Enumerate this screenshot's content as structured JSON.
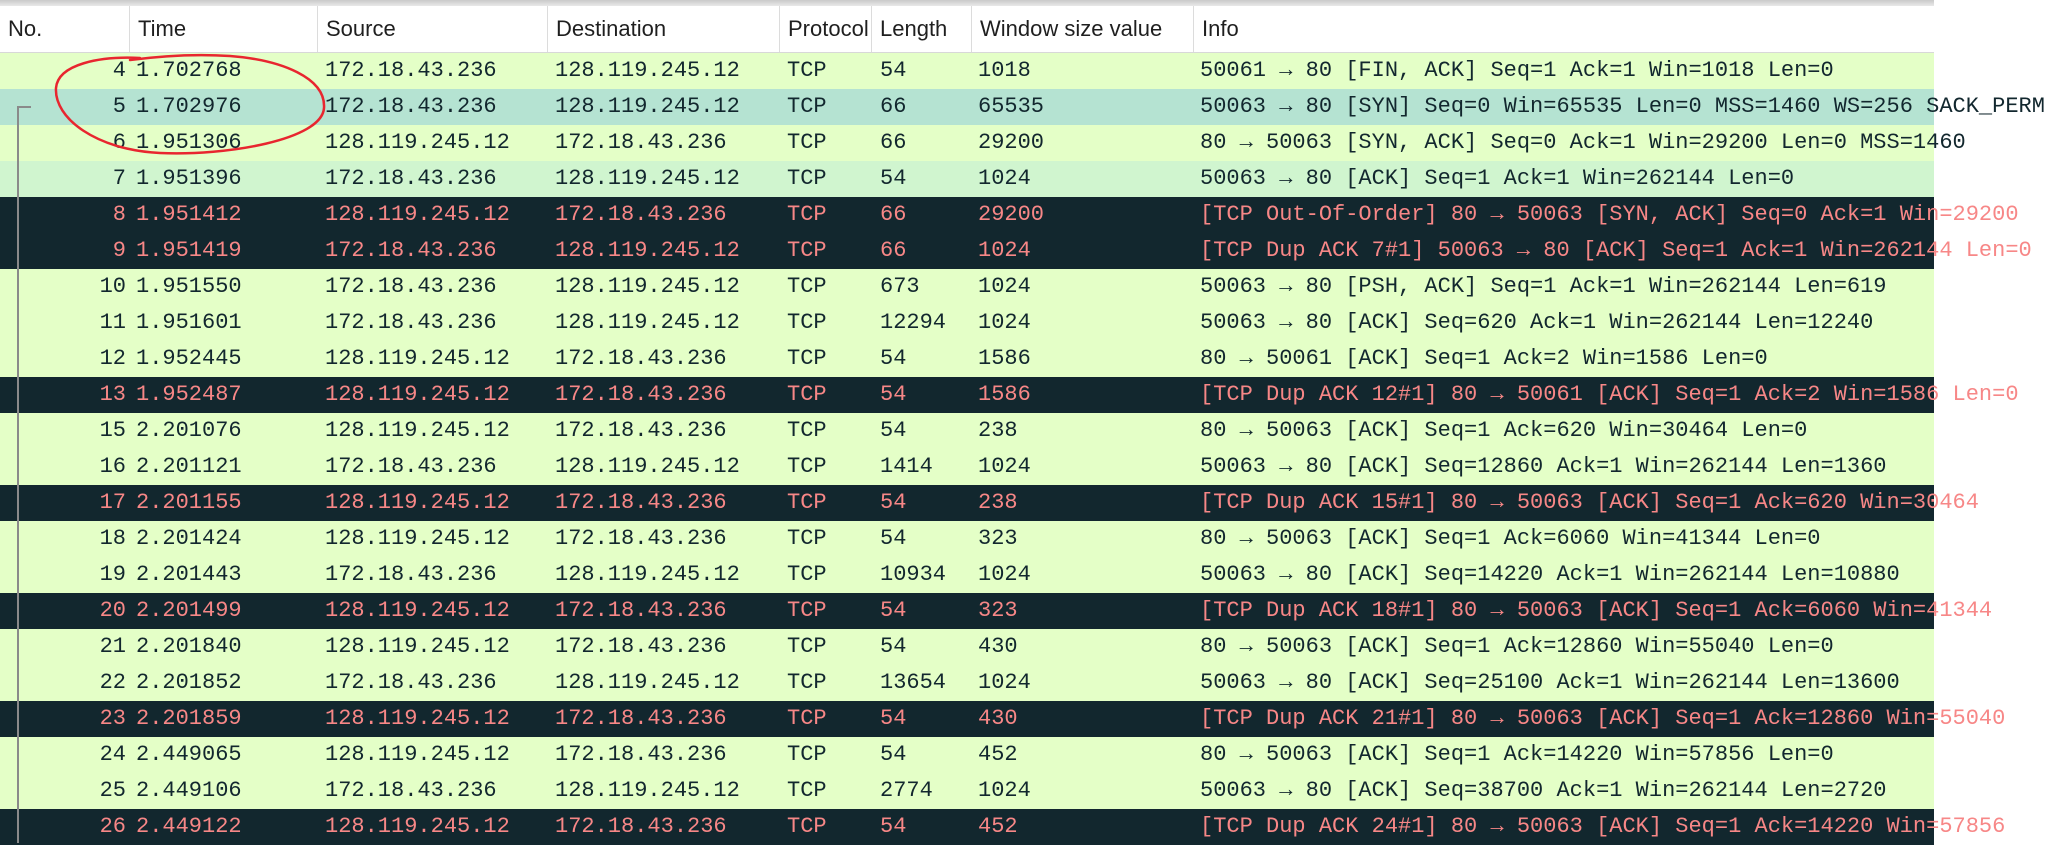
{
  "columns": {
    "no": "No.",
    "time": "Time",
    "source": "Source",
    "destination": "Destination",
    "protocol": "Protocol",
    "length": "Length",
    "window": "Window size value",
    "info": "Info"
  },
  "colors": {
    "normal_row_bg": "#e4ffc7",
    "selected_row_bg": "#b5e3d2",
    "related_row_bg": "#d0f5cf",
    "bad_row_bg": "#12272e",
    "bad_row_text": "#f78787",
    "annotation_circle": "#e8262f"
  },
  "packets": [
    {
      "no": "4",
      "time": "1.702768",
      "source": "172.18.43.236",
      "destination": "128.119.245.12",
      "protocol": "TCP",
      "length": "54",
      "window": "1018",
      "info": "50061 → 80 [FIN, ACK] Seq=1 Ack=1 Win=1018 Len=0",
      "style": "normal"
    },
    {
      "no": "5",
      "time": "1.702976",
      "source": "172.18.43.236",
      "destination": "128.119.245.12",
      "protocol": "TCP",
      "length": "66",
      "window": "65535",
      "info": "50063 → 80 [SYN] Seq=0 Win=65535 Len=0 MSS=1460 WS=256 SACK_PERM",
      "style": "selected"
    },
    {
      "no": "6",
      "time": "1.951306",
      "source": "128.119.245.12",
      "destination": "172.18.43.236",
      "protocol": "TCP",
      "length": "66",
      "window": "29200",
      "info": "80 → 50063 [SYN, ACK] Seq=0 Ack=1 Win=29200 Len=0 MSS=1460",
      "style": "normal"
    },
    {
      "no": "7",
      "time": "1.951396",
      "source": "172.18.43.236",
      "destination": "128.119.245.12",
      "protocol": "TCP",
      "length": "54",
      "window": "1024",
      "info": "50063 → 80 [ACK] Seq=1 Ack=1 Win=262144 Len=0",
      "style": "lightsel"
    },
    {
      "no": "8",
      "time": "1.951412",
      "source": "128.119.245.12",
      "destination": "172.18.43.236",
      "protocol": "TCP",
      "length": "66",
      "window": "29200",
      "info": "[TCP Out-Of-Order] 80 → 50063 [SYN, ACK] Seq=0 Ack=1 Win=29200",
      "style": "bad"
    },
    {
      "no": "9",
      "time": "1.951419",
      "source": "172.18.43.236",
      "destination": "128.119.245.12",
      "protocol": "TCP",
      "length": "66",
      "window": "1024",
      "info": "[TCP Dup ACK 7#1] 50063 → 80 [ACK] Seq=1 Ack=1 Win=262144 Len=0",
      "style": "bad"
    },
    {
      "no": "10",
      "time": "1.951550",
      "source": "172.18.43.236",
      "destination": "128.119.245.12",
      "protocol": "TCP",
      "length": "673",
      "window": "1024",
      "info": "50063 → 80 [PSH, ACK] Seq=1 Ack=1 Win=262144 Len=619",
      "style": "normal"
    },
    {
      "no": "11",
      "time": "1.951601",
      "source": "172.18.43.236",
      "destination": "128.119.245.12",
      "protocol": "TCP",
      "length": "12294",
      "window": "1024",
      "info": "50063 → 80 [ACK] Seq=620 Ack=1 Win=262144 Len=12240",
      "style": "normal"
    },
    {
      "no": "12",
      "time": "1.952445",
      "source": "128.119.245.12",
      "destination": "172.18.43.236",
      "protocol": "TCP",
      "length": "54",
      "window": "1586",
      "info": "80 → 50061 [ACK] Seq=1 Ack=2 Win=1586 Len=0",
      "style": "normal"
    },
    {
      "no": "13",
      "time": "1.952487",
      "source": "128.119.245.12",
      "destination": "172.18.43.236",
      "protocol": "TCP",
      "length": "54",
      "window": "1586",
      "info": "[TCP Dup ACK 12#1] 80 → 50061 [ACK] Seq=1 Ack=2 Win=1586 Len=0",
      "style": "bad"
    },
    {
      "no": "15",
      "time": "2.201076",
      "source": "128.119.245.12",
      "destination": "172.18.43.236",
      "protocol": "TCP",
      "length": "54",
      "window": "238",
      "info": "80 → 50063 [ACK] Seq=1 Ack=620 Win=30464 Len=0",
      "style": "normal"
    },
    {
      "no": "16",
      "time": "2.201121",
      "source": "172.18.43.236",
      "destination": "128.119.245.12",
      "protocol": "TCP",
      "length": "1414",
      "window": "1024",
      "info": "50063 → 80 [ACK] Seq=12860 Ack=1 Win=262144 Len=1360",
      "style": "normal"
    },
    {
      "no": "17",
      "time": "2.201155",
      "source": "128.119.245.12",
      "destination": "172.18.43.236",
      "protocol": "TCP",
      "length": "54",
      "window": "238",
      "info": "[TCP Dup ACK 15#1] 80 → 50063 [ACK] Seq=1 Ack=620 Win=30464",
      "style": "bad"
    },
    {
      "no": "18",
      "time": "2.201424",
      "source": "128.119.245.12",
      "destination": "172.18.43.236",
      "protocol": "TCP",
      "length": "54",
      "window": "323",
      "info": "80 → 50063 [ACK] Seq=1 Ack=6060 Win=41344 Len=0",
      "style": "normal"
    },
    {
      "no": "19",
      "time": "2.201443",
      "source": "172.18.43.236",
      "destination": "128.119.245.12",
      "protocol": "TCP",
      "length": "10934",
      "window": "1024",
      "info": "50063 → 80 [ACK] Seq=14220 Ack=1 Win=262144 Len=10880",
      "style": "normal"
    },
    {
      "no": "20",
      "time": "2.201499",
      "source": "128.119.245.12",
      "destination": "172.18.43.236",
      "protocol": "TCP",
      "length": "54",
      "window": "323",
      "info": "[TCP Dup ACK 18#1] 80 → 50063 [ACK] Seq=1 Ack=6060 Win=41344",
      "style": "bad"
    },
    {
      "no": "21",
      "time": "2.201840",
      "source": "128.119.245.12",
      "destination": "172.18.43.236",
      "protocol": "TCP",
      "length": "54",
      "window": "430",
      "info": "80 → 50063 [ACK] Seq=1 Ack=12860 Win=55040 Len=0",
      "style": "normal"
    },
    {
      "no": "22",
      "time": "2.201852",
      "source": "172.18.43.236",
      "destination": "128.119.245.12",
      "protocol": "TCP",
      "length": "13654",
      "window": "1024",
      "info": "50063 → 80 [ACK] Seq=25100 Ack=1 Win=262144 Len=13600",
      "style": "normal"
    },
    {
      "no": "23",
      "time": "2.201859",
      "source": "128.119.245.12",
      "destination": "172.18.43.236",
      "protocol": "TCP",
      "length": "54",
      "window": "430",
      "info": "[TCP Dup ACK 21#1] 80 → 50063 [ACK] Seq=1 Ack=12860 Win=55040",
      "style": "bad"
    },
    {
      "no": "24",
      "time": "2.449065",
      "source": "128.119.245.12",
      "destination": "172.18.43.236",
      "protocol": "TCP",
      "length": "54",
      "window": "452",
      "info": "80 → 50063 [ACK] Seq=1 Ack=14220 Win=57856 Len=0",
      "style": "normal"
    },
    {
      "no": "25",
      "time": "2.449106",
      "source": "172.18.43.236",
      "destination": "128.119.245.12",
      "protocol": "TCP",
      "length": "2774",
      "window": "1024",
      "info": "50063 → 80 [ACK] Seq=38700 Ack=1 Win=262144 Len=2720",
      "style": "normal"
    },
    {
      "no": "26",
      "time": "2.449122",
      "source": "128.119.245.12",
      "destination": "172.18.43.236",
      "protocol": "TCP",
      "length": "54",
      "window": "452",
      "info": "[TCP Dup ACK 24#1] 80 → 50063 [ACK] Seq=1 Ack=14220 Win=57856",
      "style": "bad"
    }
  ]
}
